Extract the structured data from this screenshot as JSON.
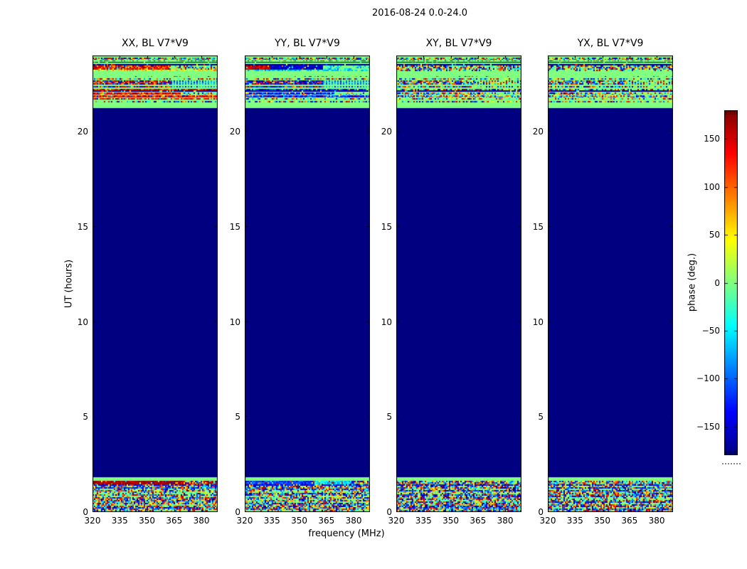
{
  "chart_data": {
    "type": "heatmap",
    "title": "2016-08-24 0.0-24.0",
    "xlabel": "frequency (MHz)",
    "ylabel": "UT (hours)",
    "xlim": [
      320,
      389
    ],
    "ylim": [
      0,
      24
    ],
    "x_ticks": [
      320,
      335,
      350,
      365,
      380
    ],
    "y_ticks": [
      0,
      5,
      10,
      15,
      20
    ],
    "colormap": "jet",
    "grid": false,
    "colorbar": {
      "label": "phase (deg.)",
      "range_deg": [
        -180,
        180
      ],
      "ticks": [
        150,
        100,
        50,
        0,
        -50,
        -100,
        -150
      ],
      "tick_labels": [
        "150",
        "100",
        "50",
        "0",
        "−50",
        "−100",
        "−150"
      ]
    },
    "panels": [
      {
        "title": "XX, BL V7*V9",
        "pol": "XX",
        "bias": "warm",
        "special_row": "dark_red"
      },
      {
        "title": "YY, BL V7*V9",
        "pol": "YY",
        "bias": "cool",
        "special_row": "blue_cyan"
      },
      {
        "title": "XY, BL V7*V9",
        "pol": "XY",
        "bias": "mixed",
        "special_row": "mixed"
      },
      {
        "title": "YX, BL V7*V9",
        "pol": "YX",
        "bias": "mixed",
        "special_row": "mixed"
      }
    ],
    "regions": {
      "quiet": {
        "hours": [
          1.84,
          21.24
        ],
        "phase_deg": -180
      },
      "top_band": {
        "hours": [
          21.24,
          24.0
        ],
        "background_phase_deg": 0,
        "description": "noisy horizontal stripes"
      },
      "bottom_band": {
        "noise_hours": [
          0,
          1.45
        ],
        "special_hours": [
          1.45,
          1.66
        ],
        "green_hours": [
          1.66,
          1.84
        ],
        "description": "random phase noise"
      }
    },
    "top_stripes": [
      {
        "h0": 23.78,
        "h1": 23.9,
        "s": "mixed"
      },
      {
        "h0": 23.7,
        "h1": 23.75,
        "s": "mixed_thin"
      },
      {
        "h0": 23.61,
        "h1": 23.66,
        "s": "navy"
      },
      {
        "h0": 23.51,
        "h1": 23.57,
        "s": "navy"
      },
      {
        "h0": 23.27,
        "h1": 23.48,
        "s": "main",
        "fade": 0.62
      },
      {
        "h0": 23.18,
        "h1": 23.26,
        "s": "light",
        "fade": 0.5
      },
      {
        "h0": 22.88,
        "h1": 22.92,
        "s": "dots"
      },
      {
        "h0": 22.73,
        "h1": 22.8,
        "s": "mixed_thin"
      },
      {
        "h0": 22.32,
        "h1": 22.69,
        "s": "block"
      },
      {
        "h0": 22.17,
        "h1": 22.26,
        "s": "main2"
      },
      {
        "h0": 22.09,
        "h1": 22.15,
        "s": "navy"
      },
      {
        "h0": 21.96,
        "h1": 22.07,
        "s": "main2",
        "fade": 0.7
      },
      {
        "h0": 21.79,
        "h1": 21.91,
        "s": "main2"
      },
      {
        "h0": 21.66,
        "h1": 21.74,
        "s": "main2_thin"
      },
      {
        "h0": 21.53,
        "h1": 21.59,
        "s": "mixed_thin"
      }
    ],
    "colors": {
      "quiet_navy": "#000080",
      "band_green": "#80ff80",
      "axis": "#000000",
      "background": "#ffffff"
    }
  }
}
